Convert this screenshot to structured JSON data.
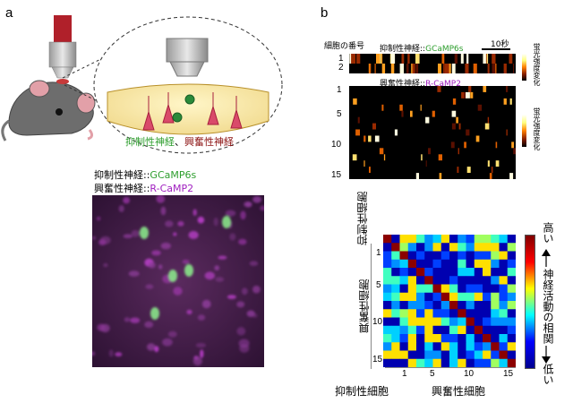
{
  "panel_a": {
    "label": "a",
    "illustration_labels": {
      "inhibitory": "抑制性神経",
      "excitatory": "興奮性神経",
      "sep": "、"
    },
    "legend": {
      "inhibitory_name": "抑制性神経",
      "inhibitory_probe": "GCaMP6s",
      "excitatory_name": "興奮性神経",
      "excitatory_probe": "R-CaMP2",
      "sep": "::"
    }
  },
  "panel_b": {
    "label": "b",
    "cell_number_label": "細胞の番号",
    "time_scale": "10秒",
    "trace_top_title_name": "抑制性神経",
    "trace_top_title_probe": "GCaMP6s",
    "trace_bottom_title_name": "興奮性神経",
    "trace_bottom_title_probe": "R-CaMP2",
    "sep": "::",
    "top_ticks": [
      "1",
      "2"
    ],
    "bottom_ticks": [
      "1",
      "5",
      "10",
      "15"
    ],
    "colorbar_label": "蛍光強度変化",
    "matrix": {
      "y_label_inhib": "抑制性細胞",
      "y_label_excit": "興奮性細胞",
      "x_label_inhib": "抑制性細胞",
      "x_label_excit": "興奮性細胞",
      "y_ticks": [
        "1",
        "5",
        "10",
        "15"
      ],
      "x_ticks": [
        "1",
        "5",
        "10",
        "15"
      ],
      "colorbar_high": "高い",
      "colorbar_low": "低い",
      "colorbar_title": "神経活動の相関"
    }
  },
  "colors": {
    "green": "#2e9e2e",
    "magenta": "#a020c0",
    "dark_red": "#8b1010",
    "colorbar_stops": [
      "#00008f",
      "#0000ff",
      "#00ffff",
      "#ffff00",
      "#ff0000",
      "#800000"
    ]
  }
}
